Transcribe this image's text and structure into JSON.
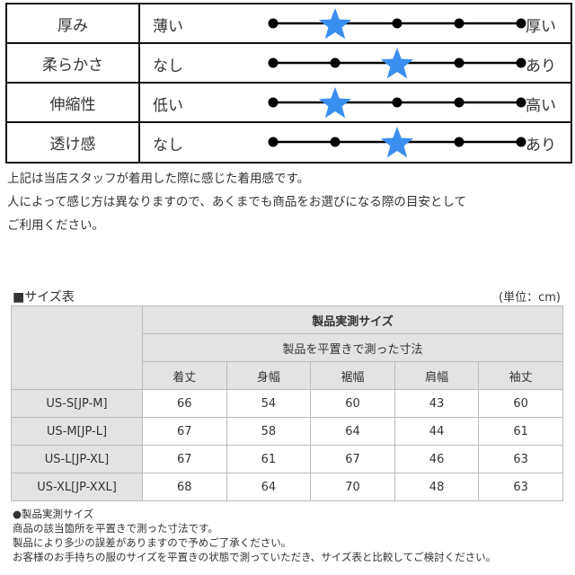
{
  "feel": {
    "rows": [
      {
        "name": "厚み",
        "low": "薄い",
        "high": "厚い",
        "level": 2
      },
      {
        "name": "柔らかさ",
        "low": "なし",
        "high": "あり",
        "level": 3
      },
      {
        "name": "伸縮性",
        "low": "低い",
        "high": "高い",
        "level": 2
      },
      {
        "name": "透け感",
        "low": "なし",
        "high": "あり",
        "level": 3
      }
    ],
    "scale_points": 5,
    "star_color": "#3a8ef0"
  },
  "feel_notes": [
    "上記は当店スタッフが着用した際に感じた着用感です。",
    "人によって感じ方は異なりますので、あくまでも商品をお選びになる際の目安として",
    "ご利用ください。"
  ],
  "size": {
    "title": "■サイズ表",
    "unit": "(単位：cm)",
    "header": "製品実測サイズ",
    "subheader": "製品を平置きで測った寸法",
    "columns": [
      "着丈",
      "身幅",
      "裾幅",
      "肩幅",
      "袖丈"
    ],
    "rows": [
      {
        "label": "US-S[JP-M]",
        "values": [
          "66",
          "54",
          "60",
          "43",
          "60"
        ]
      },
      {
        "label": "US-M[JP-L]",
        "values": [
          "67",
          "58",
          "64",
          "44",
          "61"
        ]
      },
      {
        "label": "US-L[JP-XL]",
        "values": [
          "67",
          "61",
          "67",
          "46",
          "63"
        ]
      },
      {
        "label": "US-XL[JP-XXL]",
        "values": [
          "68",
          "64",
          "70",
          "48",
          "63"
        ]
      }
    ]
  },
  "size_notes": [
    "●製品実測サイズ",
    "商品の該当箇所を平置きで測った寸法です。",
    "製品により多少の誤差がありますので予めご了承ください。",
    "お客様のお手持ちの服のサイズを平置きの状態で測っていただき、サイズ表と比較してご検討ください。"
  ]
}
